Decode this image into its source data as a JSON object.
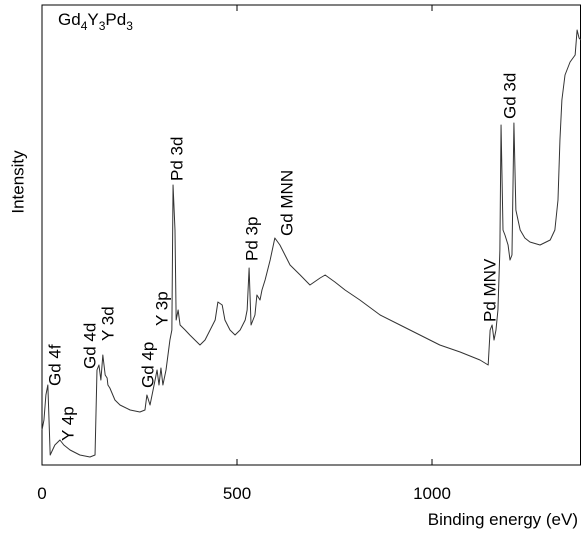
{
  "chart_data": {
    "type": "line",
    "title_parts": [
      "Gd",
      "4",
      "Y",
      "3",
      "Pd",
      "3"
    ],
    "xlabel": "Binding energy (eV)",
    "ylabel": "Intensity",
    "xlim": [
      0,
      1382
    ],
    "ylim": [
      0,
      460
    ],
    "xticks": [
      0,
      500,
      1000
    ],
    "annotations": [
      "Gd 4f",
      "Y 4p",
      "Gd 4d",
      "Y 3d",
      "Gd 4p",
      "Y 3p",
      "Pd 3d",
      "Pd 3p",
      "Gd MNN",
      "Pd MNV",
      "Gd 3d"
    ],
    "x": [
      0,
      5,
      10,
      15,
      21,
      33,
      46,
      56,
      72,
      97,
      123,
      136,
      141,
      146,
      151,
      156,
      162,
      167,
      169,
      174,
      187,
      200,
      226,
      251,
      264,
      269,
      277,
      290,
      295,
      300,
      305,
      310,
      318,
      328,
      333,
      336,
      341,
      344,
      349,
      354,
      367,
      379,
      392,
      405,
      418,
      431,
      444,
      451,
      462,
      469,
      482,
      495,
      508,
      521,
      526,
      531,
      536,
      546,
      551,
      559,
      564,
      572,
      585,
      597,
      610,
      623,
      636,
      649,
      662,
      687,
      713,
      726,
      751,
      777,
      815,
      867,
      918,
      969,
      1020,
      1072,
      1123,
      1144,
      1149,
      1154,
      1159,
      1164,
      1169,
      1174,
      1177,
      1182,
      1187,
      1195,
      1200,
      1205,
      1210,
      1215,
      1226,
      1238,
      1251,
      1277,
      1303,
      1315,
      1323,
      1328,
      1333,
      1341,
      1354,
      1367,
      1372,
      1377,
      1382
    ],
    "series": [
      {
        "color": "#333333",
        "values": [
          35,
          45,
          70,
          80,
          10,
          20,
          25,
          20,
          15,
          10,
          8,
          10,
          95,
          100,
          85,
          110,
          90,
          87,
          80,
          77,
          65,
          60,
          55,
          53,
          55,
          70,
          60,
          85,
          95,
          80,
          97,
          80,
          95,
          125,
          135,
          280,
          235,
          145,
          155,
          140,
          135,
          130,
          125,
          120,
          125,
          135,
          145,
          163,
          160,
          145,
          135,
          130,
          135,
          145,
          155,
          197,
          140,
          150,
          170,
          165,
          175,
          185,
          205,
          227,
          220,
          210,
          200,
          195,
          190,
          180,
          187,
          190,
          183,
          175,
          165,
          150,
          140,
          130,
          120,
          113,
          105,
          100,
          135,
          140,
          125,
          135,
          155,
          215,
          340,
          235,
          230,
          220,
          205,
          210,
          342,
          255,
          235,
          227,
          223,
          220,
          225,
          235,
          265,
          325,
          365,
          390,
          403,
          410,
          435,
          427,
          425
        ]
      }
    ]
  }
}
